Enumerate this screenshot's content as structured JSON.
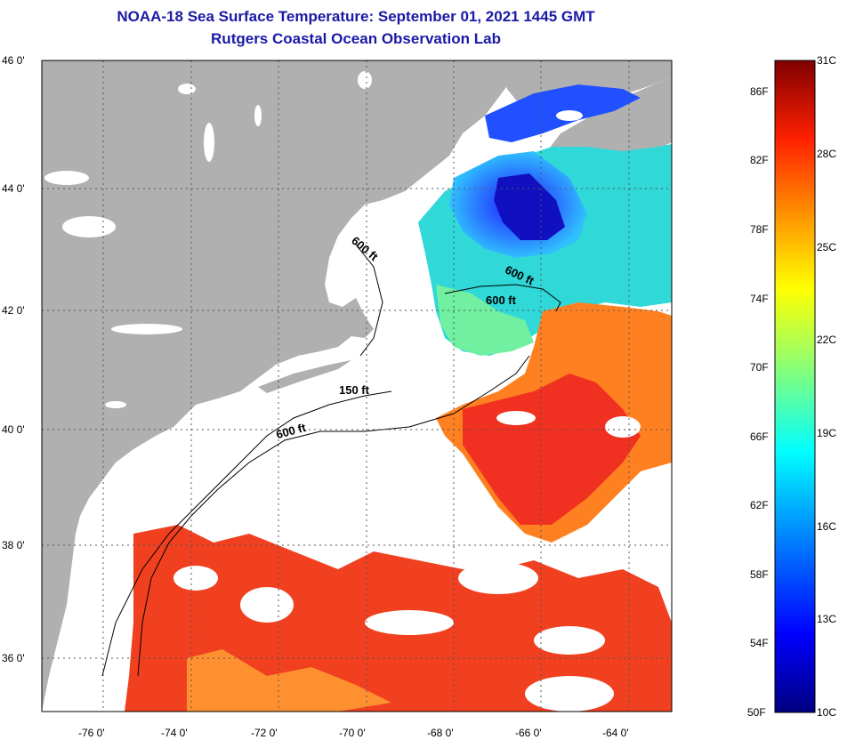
{
  "title_line1": "NOAA-18 Sea Surface Temperature:  September 01, 2021 1445 GMT",
  "title_line2": "Rutgers Coastal Ocean Observation Lab",
  "lat_labels": [
    "46 0'",
    "44 0'",
    "42 0'",
    "40 0'",
    "38 0'",
    "36 0'"
  ],
  "lon_labels": [
    "-76 0'",
    "-74 0'",
    "-72 0'",
    "-70 0'",
    "-68 0'",
    "-66 0'",
    "-64 0'"
  ],
  "contour_labels": [
    "600 ft",
    "600 ft",
    "600 ft",
    "150 ft",
    "600 ft"
  ],
  "colorbar": {
    "fahrenheit": [
      "86F",
      "82F",
      "78F",
      "74F",
      "70F",
      "66F",
      "62F",
      "58F",
      "54F",
      "50F"
    ],
    "celsius": [
      "31C",
      "28C",
      "25C",
      "22C",
      "19C",
      "16C",
      "13C",
      "10C"
    ]
  },
  "colors": {
    "land": "#b0b0b0",
    "title": "#1a1aa6",
    "cloud": "#ffffff"
  }
}
